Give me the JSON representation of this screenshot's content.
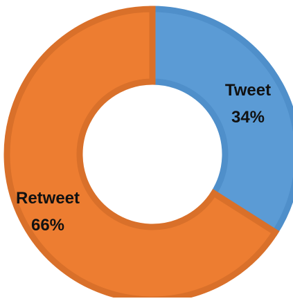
{
  "chart_data": {
    "type": "pie",
    "variant": "donut",
    "title": "",
    "slices": [
      {
        "label": "Tweet",
        "value": 34,
        "percent_label": "34%",
        "color": "#5b9bd5",
        "edge_color": "#4f8fca"
      },
      {
        "label": "Retweet",
        "value": 66,
        "percent_label": "66%",
        "color": "#ed7d31",
        "edge_color": "#d9702a"
      }
    ],
    "legend": "none"
  }
}
